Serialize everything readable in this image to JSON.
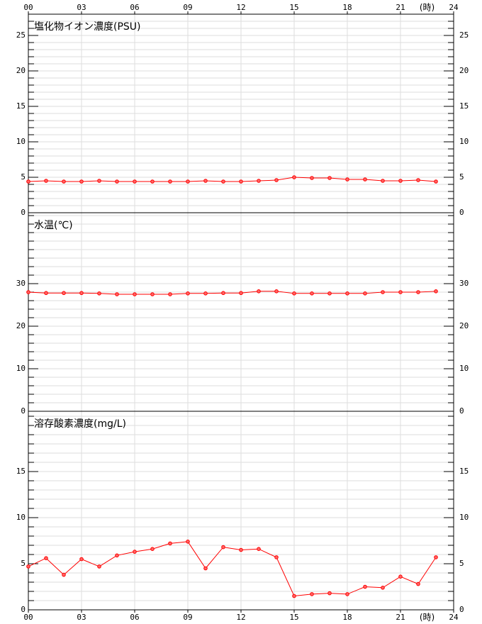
{
  "chart_data": [
    {
      "type": "line",
      "title": "塩化物イオン濃度(PSU)",
      "x_unit": "(時)",
      "xlim": [
        0,
        24
      ],
      "xticks": [
        {
          "value": 0,
          "label": "00"
        },
        {
          "value": 3,
          "label": "03"
        },
        {
          "value": 6,
          "label": "06"
        },
        {
          "value": 9,
          "label": "09"
        },
        12,
        15,
        18,
        21,
        24
      ],
      "ylim": [
        0,
        28
      ],
      "yticks": [
        0,
        5,
        10,
        15,
        20,
        25
      ],
      "minor_step": 1,
      "grid": true,
      "x": [
        0,
        1,
        2,
        3,
        4,
        5,
        6,
        7,
        8,
        9,
        10,
        11,
        12,
        13,
        14,
        15,
        16,
        17,
        18,
        19,
        20,
        21,
        22,
        23
      ],
      "series": [
        {
          "color": "#ff0000",
          "values": [
            4.4,
            4.5,
            4.4,
            4.4,
            4.5,
            4.4,
            4.4,
            4.4,
            4.4,
            4.4,
            4.5,
            4.4,
            4.4,
            4.5,
            4.6,
            5.0,
            4.9,
            4.9,
            4.7,
            4.7,
            4.5,
            4.5,
            4.6,
            4.4
          ]
        }
      ]
    },
    {
      "type": "line",
      "title": "水温(℃)",
      "xlim": [
        0,
        24
      ],
      "ylim": [
        0,
        46.67
      ],
      "yticks": [
        0,
        10,
        20,
        30
      ],
      "minor_step": 2,
      "grid": true,
      "x": [
        0,
        1,
        2,
        3,
        4,
        5,
        6,
        7,
        8,
        9,
        10,
        11,
        12,
        13,
        14,
        15,
        16,
        17,
        18,
        19,
        20,
        21,
        22,
        23
      ],
      "series": [
        {
          "color": "#ff0000",
          "values": [
            28.0,
            27.8,
            27.8,
            27.8,
            27.7,
            27.5,
            27.5,
            27.5,
            27.5,
            27.7,
            27.7,
            27.8,
            27.8,
            28.2,
            28.2,
            27.7,
            27.7,
            27.7,
            27.7,
            27.7,
            28.0,
            28.0,
            28.0,
            28.2
          ]
        }
      ]
    },
    {
      "type": "line",
      "title": "溶存酸素濃度(mg/L)",
      "x_unit": "(時)",
      "xlim": [
        0,
        24
      ],
      "xticks": [
        {
          "value": 0,
          "label": "00"
        },
        {
          "value": 3,
          "label": "03"
        },
        {
          "value": 6,
          "label": "06"
        },
        {
          "value": 9,
          "label": "09"
        },
        12,
        15,
        18,
        21,
        24
      ],
      "ylim": [
        0,
        21.54
      ],
      "yticks": [
        0,
        5,
        10,
        15
      ],
      "minor_step": 1,
      "grid": true,
      "x": [
        0,
        1,
        2,
        3,
        4,
        5,
        6,
        7,
        8,
        9,
        10,
        11,
        12,
        13,
        14,
        15,
        16,
        17,
        18,
        19,
        20,
        21,
        22,
        23
      ],
      "series": [
        {
          "color": "#ff0000",
          "values": [
            4.7,
            5.6,
            3.8,
            5.5,
            4.7,
            5.9,
            6.3,
            6.6,
            7.2,
            7.4,
            4.5,
            6.8,
            6.5,
            6.6,
            5.7,
            1.5,
            1.7,
            1.8,
            1.7,
            2.5,
            2.4,
            3.6,
            2.8,
            5.7
          ]
        }
      ]
    }
  ]
}
